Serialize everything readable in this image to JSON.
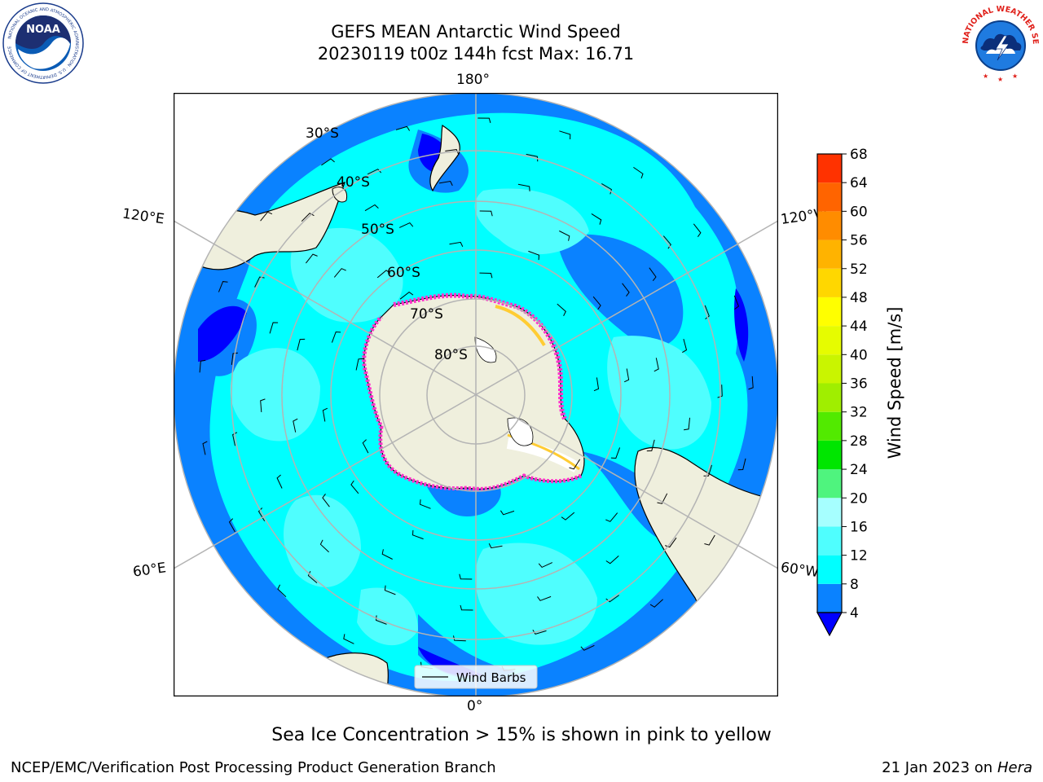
{
  "header": {
    "title_line1": "GEFS MEAN Antarctic Wind Speed",
    "title_line2": "20230119 t00z 144h fcst   Max: 16.71"
  },
  "logos": {
    "noaa_text": "NOAA",
    "noaa_ring_text": "NATIONAL OCEANIC AND ATMOSPHERIC ADMINISTRATION · U.S. DEPARTMENT OF COMMERCE",
    "nws_ring_text": "NATIONAL WEATHER SERVICE"
  },
  "map": {
    "projection": "south-polar-stereographic",
    "lon_labels": {
      "top": "180°",
      "bottom": "0°",
      "upper_left": "120°E",
      "upper_right": "120°W",
      "lower_left": "60°E",
      "lower_right": "60°W"
    },
    "lat_labels": [
      "30°S",
      "40°S",
      "50°S",
      "60°S",
      "70°S",
      "80°S"
    ],
    "legend_label": "Wind Barbs",
    "colors": {
      "ocean_outer": "#0a82ff",
      "ocean_mid": "#00ffff",
      "ocean_high": "#4ffefe",
      "land": "#efefdd",
      "ice_edge": "#ff33cc",
      "ice_core": "#ffffff",
      "grid": "#b4b4b4"
    }
  },
  "colorbar": {
    "label": "Wind Speed [m/s]",
    "ticks": [
      "4",
      "8",
      "12",
      "16",
      "20",
      "24",
      "28",
      "32",
      "36",
      "40",
      "44",
      "48",
      "52",
      "56",
      "60",
      "64",
      "68"
    ],
    "colors": [
      "#0a82ff",
      "#00ffff",
      "#4ffefe",
      "#a6ffff",
      "#4ff47e",
      "#00e600",
      "#52ea00",
      "#a0ee00",
      "#c9f500",
      "#e6fc00",
      "#ffff00",
      "#ffd700",
      "#ffb300",
      "#ff8c00",
      "#ff6400",
      "#ff3200"
    ],
    "extend_color": "#0000ff"
  },
  "caption": "Sea Ice Concentration > 15% is shown in pink to yellow",
  "footer": {
    "left": "NCEP/EMC/Verification Post Processing Product Generation Branch",
    "right_date": "21 Jan 2023 on ",
    "right_host": "Hera"
  }
}
